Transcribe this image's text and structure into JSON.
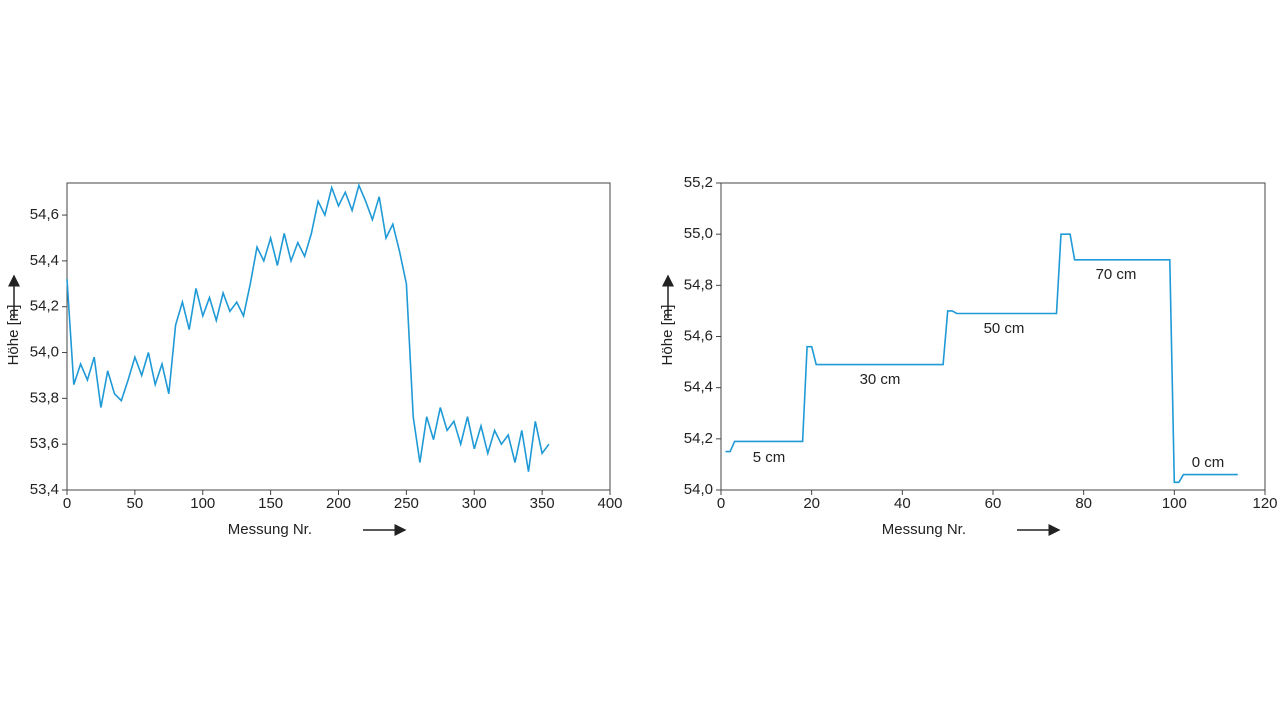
{
  "chart_data": [
    {
      "type": "line",
      "x_label": "Messung Nr.",
      "y_label": "Höhe [m]",
      "xlim": [
        0,
        400
      ],
      "xticks": [
        0,
        50,
        100,
        150,
        200,
        250,
        300,
        350,
        400
      ],
      "ylim": [
        53.4,
        54.74
      ],
      "yticks": [
        {
          "value": 53.4,
          "label": "53,4"
        },
        {
          "value": 53.6,
          "label": "53,6"
        },
        {
          "value": 53.8,
          "label": "53,8"
        },
        {
          "value": 54.0,
          "label": "54,0"
        },
        {
          "value": 54.2,
          "label": "54,2"
        },
        {
          "value": 54.4,
          "label": "54,4"
        },
        {
          "value": 54.6,
          "label": "54,6"
        }
      ],
      "series": [
        {
          "color": "#1f9ad6",
          "x": [
            0,
            5,
            10,
            15,
            20,
            25,
            30,
            35,
            40,
            45,
            50,
            55,
            60,
            65,
            70,
            75,
            80,
            85,
            90,
            95,
            100,
            105,
            110,
            115,
            120,
            125,
            130,
            135,
            140,
            145,
            150,
            155,
            160,
            165,
            170,
            175,
            180,
            185,
            190,
            195,
            200,
            205,
            210,
            215,
            220,
            225,
            230,
            235,
            240,
            245,
            250,
            255,
            260,
            265,
            270,
            275,
            280,
            285,
            290,
            295,
            300,
            305,
            310,
            315,
            320,
            325,
            330,
            335,
            340,
            345,
            350,
            355
          ],
          "values": [
            54.32,
            53.86,
            53.95,
            53.88,
            53.98,
            53.76,
            53.92,
            53.82,
            53.79,
            53.88,
            53.98,
            53.9,
            54.0,
            53.86,
            53.95,
            53.82,
            54.12,
            54.22,
            54.1,
            54.28,
            54.16,
            54.24,
            54.14,
            54.26,
            54.18,
            54.22,
            54.16,
            54.3,
            54.46,
            54.4,
            54.5,
            54.38,
            54.52,
            54.4,
            54.48,
            54.42,
            54.52,
            54.66,
            54.6,
            54.72,
            54.64,
            54.7,
            54.62,
            54.73,
            54.66,
            54.58,
            54.68,
            54.5,
            54.56,
            54.44,
            54.3,
            53.72,
            53.52,
            53.72,
            53.62,
            53.76,
            53.66,
            53.7,
            53.6,
            53.72,
            53.58,
            53.68,
            53.56,
            53.66,
            53.6,
            53.64,
            53.52,
            53.66,
            53.48,
            53.7,
            53.56,
            53.6
          ]
        }
      ]
    },
    {
      "type": "line",
      "x_label": "Messung Nr.",
      "y_label": "Höhe [m]",
      "xlim": [
        0,
        120
      ],
      "xticks": [
        0,
        20,
        40,
        60,
        80,
        100,
        120
      ],
      "ylim": [
        54.0,
        55.2
      ],
      "yticks": [
        {
          "value": 54.0,
          "label": "54,0"
        },
        {
          "value": 54.2,
          "label": "54,2"
        },
        {
          "value": 54.4,
          "label": "54,4"
        },
        {
          "value": 54.6,
          "label": "54,6"
        },
        {
          "value": 54.8,
          "label": "54,8"
        },
        {
          "value": 55.0,
          "label": "55,0"
        },
        {
          "value": 55.2,
          "label": "55,2"
        }
      ],
      "annotations": [
        "5 cm",
        "30 cm",
        "50 cm",
        "70 cm",
        "0 cm"
      ],
      "series": [
        {
          "color": "#1f9ad6",
          "x": [
            1,
            2,
            3,
            18,
            19,
            20,
            21,
            49,
            50,
            51,
            52,
            74,
            75,
            77,
            78,
            99,
            100,
            101,
            102,
            114
          ],
          "values": [
            54.15,
            54.15,
            54.19,
            54.19,
            54.56,
            54.56,
            54.49,
            54.49,
            54.7,
            54.7,
            54.69,
            54.69,
            55.0,
            55.0,
            54.9,
            54.9,
            54.03,
            54.03,
            54.06,
            54.06
          ]
        }
      ]
    }
  ]
}
